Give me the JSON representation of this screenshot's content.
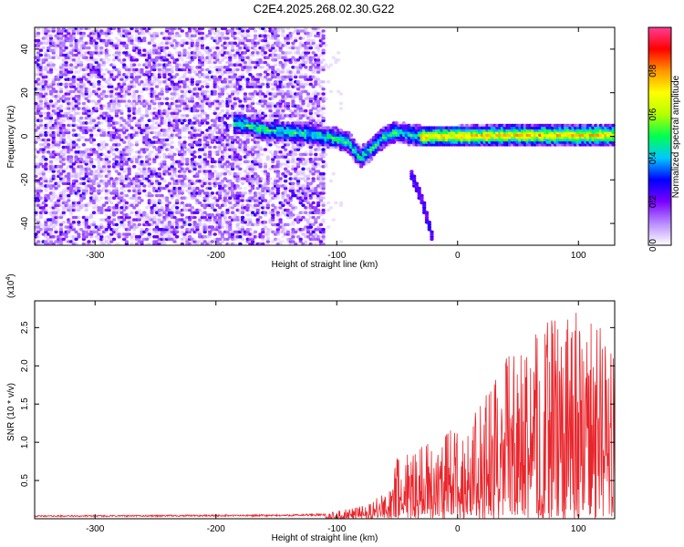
{
  "title": "C2E4.2025.268.02.30.G22",
  "chart_data": [
    {
      "type": "heatmap",
      "name": "spectrogram",
      "xlabel": "Height of straight line (km)",
      "ylabel": "Frequency (Hz)",
      "xlim": [
        -350,
        130
      ],
      "ylim": [
        -50,
        50
      ],
      "xticks": [
        -300,
        -200,
        -100,
        0,
        100
      ],
      "yticks": [
        -40,
        -20,
        0,
        20,
        40
      ],
      "colorbar": {
        "label": "Normalized spectral amplitude",
        "range": [
          0,
          1
        ],
        "ticks": [
          "0.0",
          "0.2",
          "0.4",
          "0.6",
          "0.8"
        ],
        "tick_values": [
          0.0,
          0.2,
          0.4,
          0.6,
          0.8
        ],
        "colors": [
          "#ffffff",
          "#b88cff",
          "#7a00ff",
          "#0000ff",
          "#00c8ff",
          "#00ff50",
          "#b4ff00",
          "#ffff00",
          "#ff9600",
          "#ff0000",
          "#ff3c96"
        ]
      },
      "features": {
        "noise_region_x": [
          -350,
          -110
        ],
        "signal_track": [
          [
            -180,
            6
          ],
          [
            -160,
            3
          ],
          [
            -140,
            2
          ],
          [
            -120,
            1
          ],
          [
            -100,
            -1
          ],
          [
            -90,
            -3
          ],
          [
            -80,
            -10
          ],
          [
            -70,
            -5
          ],
          [
            -60,
            0
          ],
          [
            -50,
            2
          ],
          [
            -40,
            1
          ],
          [
            -30,
            0
          ],
          [
            -20,
            0
          ],
          [
            0,
            0
          ],
          [
            40,
            0.5
          ],
          [
            80,
            0.5
          ],
          [
            130,
            0.5
          ]
        ],
        "branch_track": [
          [
            -40,
            -15
          ],
          [
            -35,
            -22
          ],
          [
            -30,
            -28
          ],
          [
            -25,
            -38
          ],
          [
            -20,
            -48
          ]
        ]
      }
    },
    {
      "type": "line",
      "name": "snr",
      "xlabel": "Height of straight line (km)",
      "ylabel": "SNR (10 * v/v)",
      "multiplier": "(x10",
      "multiplier_exp": "4",
      "multiplier_close": ")",
      "xlim": [
        -350,
        130
      ],
      "ylim": [
        0,
        2.85
      ],
      "xticks": [
        -300,
        -200,
        -100,
        0,
        100
      ],
      "yticks": [
        0.5,
        1.0,
        1.5,
        2.0,
        2.5
      ],
      "ytick_labels": [
        "0.5",
        "1.0",
        "1.5",
        "2.0",
        "2.5"
      ],
      "color": "#e8262c",
      "envelope": [
        [
          -350,
          0.04
        ],
        [
          -150,
          0.05
        ],
        [
          -110,
          0.06
        ],
        [
          -95,
          0.12
        ],
        [
          -75,
          0.18
        ],
        [
          -60,
          0.35
        ],
        [
          -50,
          0.8
        ],
        [
          -35,
          0.9
        ],
        [
          -20,
          1.1
        ],
        [
          0,
          1.25
        ],
        [
          20,
          1.55
        ],
        [
          40,
          2.1
        ],
        [
          55,
          2.3
        ],
        [
          75,
          2.65
        ],
        [
          95,
          2.8
        ],
        [
          110,
          2.7
        ],
        [
          130,
          2.2
        ]
      ]
    }
  ]
}
